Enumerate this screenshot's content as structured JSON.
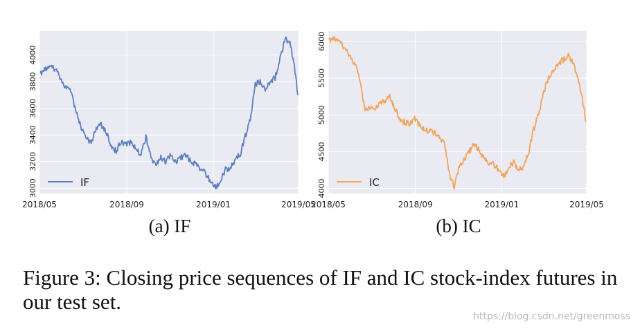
{
  "chart_data": [
    {
      "type": "line",
      "subcaption": "(a) IF",
      "x_ticks": [
        "2018/05",
        "2018/09",
        "2019/01",
        "2019/05"
      ],
      "y_ticks": [
        3000,
        3200,
        3400,
        3600,
        3800,
        4000
      ],
      "ylim": [
        2960,
        4180
      ],
      "xlim": [
        "2018-05-01",
        "2019-05-01"
      ],
      "grid": true,
      "legend_position": "lower-left",
      "series": [
        {
          "name": "IF",
          "color": "#5b7fbf",
          "x": [
            "2018-05-02",
            "2018-05-10",
            "2018-05-18",
            "2018-05-25",
            "2018-06-01",
            "2018-06-08",
            "2018-06-15",
            "2018-06-22",
            "2018-06-29",
            "2018-07-06",
            "2018-07-13",
            "2018-07-20",
            "2018-07-27",
            "2018-08-03",
            "2018-08-10",
            "2018-08-17",
            "2018-08-24",
            "2018-08-31",
            "2018-09-07",
            "2018-09-14",
            "2018-09-21",
            "2018-09-28",
            "2018-10-05",
            "2018-10-12",
            "2018-10-19",
            "2018-10-26",
            "2018-11-02",
            "2018-11-09",
            "2018-11-16",
            "2018-11-23",
            "2018-11-30",
            "2018-12-07",
            "2018-12-14",
            "2018-12-21",
            "2018-12-28",
            "2019-01-04",
            "2019-01-11",
            "2019-01-18",
            "2019-01-25",
            "2019-02-01",
            "2019-02-08",
            "2019-02-15",
            "2019-02-22",
            "2019-03-01",
            "2019-03-08",
            "2019-03-15",
            "2019-03-22",
            "2019-03-29",
            "2019-04-05",
            "2019-04-12",
            "2019-04-19",
            "2019-04-26",
            "2019-04-30"
          ],
          "y": [
            3860,
            3900,
            3920,
            3880,
            3800,
            3760,
            3720,
            3560,
            3450,
            3380,
            3330,
            3460,
            3480,
            3420,
            3320,
            3280,
            3350,
            3330,
            3340,
            3300,
            3250,
            3380,
            3240,
            3170,
            3230,
            3200,
            3250,
            3200,
            3230,
            3250,
            3200,
            3180,
            3150,
            3110,
            3050,
            3000,
            3060,
            3140,
            3150,
            3220,
            3260,
            3390,
            3510,
            3780,
            3800,
            3740,
            3800,
            3830,
            3970,
            4120,
            4100,
            3880,
            3700
          ]
        }
      ]
    },
    {
      "type": "line",
      "subcaption": "(b) IC",
      "x_ticks": [
        "2018/05",
        "2018/09",
        "2019/01",
        "2019/05"
      ],
      "y_ticks": [
        4000,
        4500,
        5000,
        5500,
        6000
      ],
      "ylim": [
        3930,
        6140
      ],
      "xlim": [
        "2018-05-01",
        "2019-05-01"
      ],
      "grid": true,
      "legend_position": "lower-left",
      "series": [
        {
          "name": "IC",
          "color": "#f2a45c",
          "x": [
            "2018-05-02",
            "2018-05-10",
            "2018-05-18",
            "2018-05-25",
            "2018-06-01",
            "2018-06-08",
            "2018-06-15",
            "2018-06-22",
            "2018-06-29",
            "2018-07-06",
            "2018-07-13",
            "2018-07-20",
            "2018-07-27",
            "2018-08-03",
            "2018-08-10",
            "2018-08-17",
            "2018-08-24",
            "2018-08-31",
            "2018-09-07",
            "2018-09-14",
            "2018-09-21",
            "2018-09-28",
            "2018-10-05",
            "2018-10-12",
            "2018-10-19",
            "2018-10-26",
            "2018-11-02",
            "2018-11-09",
            "2018-11-16",
            "2018-11-23",
            "2018-11-30",
            "2018-12-07",
            "2018-12-14",
            "2018-12-21",
            "2018-12-28",
            "2019-01-04",
            "2019-01-11",
            "2019-01-18",
            "2019-01-25",
            "2019-02-01",
            "2019-02-08",
            "2019-02-15",
            "2019-02-22",
            "2019-03-01",
            "2019-03-08",
            "2019-03-15",
            "2019-03-22",
            "2019-03-29",
            "2019-04-05",
            "2019-04-12",
            "2019-04-19",
            "2019-04-26",
            "2019-04-30"
          ],
          "y": [
            6020,
            6040,
            6000,
            5880,
            5780,
            5700,
            5450,
            5050,
            5100,
            5080,
            5150,
            5200,
            5250,
            5080,
            4950,
            4900,
            4880,
            4950,
            4850,
            4800,
            4780,
            4750,
            4700,
            4620,
            4200,
            4020,
            4300,
            4400,
            4500,
            4600,
            4520,
            4400,
            4350,
            4320,
            4250,
            4150,
            4300,
            4350,
            4250,
            4300,
            4500,
            4800,
            5000,
            5300,
            5500,
            5600,
            5700,
            5750,
            5800,
            5700,
            5500,
            5150,
            4900
          ]
        }
      ]
    }
  ],
  "panels": {
    "a": {
      "subcaption": "(a) IF"
    },
    "b": {
      "subcaption": "(b) IC"
    }
  },
  "caption": "Figure 3: Closing price sequences of IF and IC stock-index futures in our test set.",
  "watermark": "https://blog.csdn.net/greenmoss"
}
